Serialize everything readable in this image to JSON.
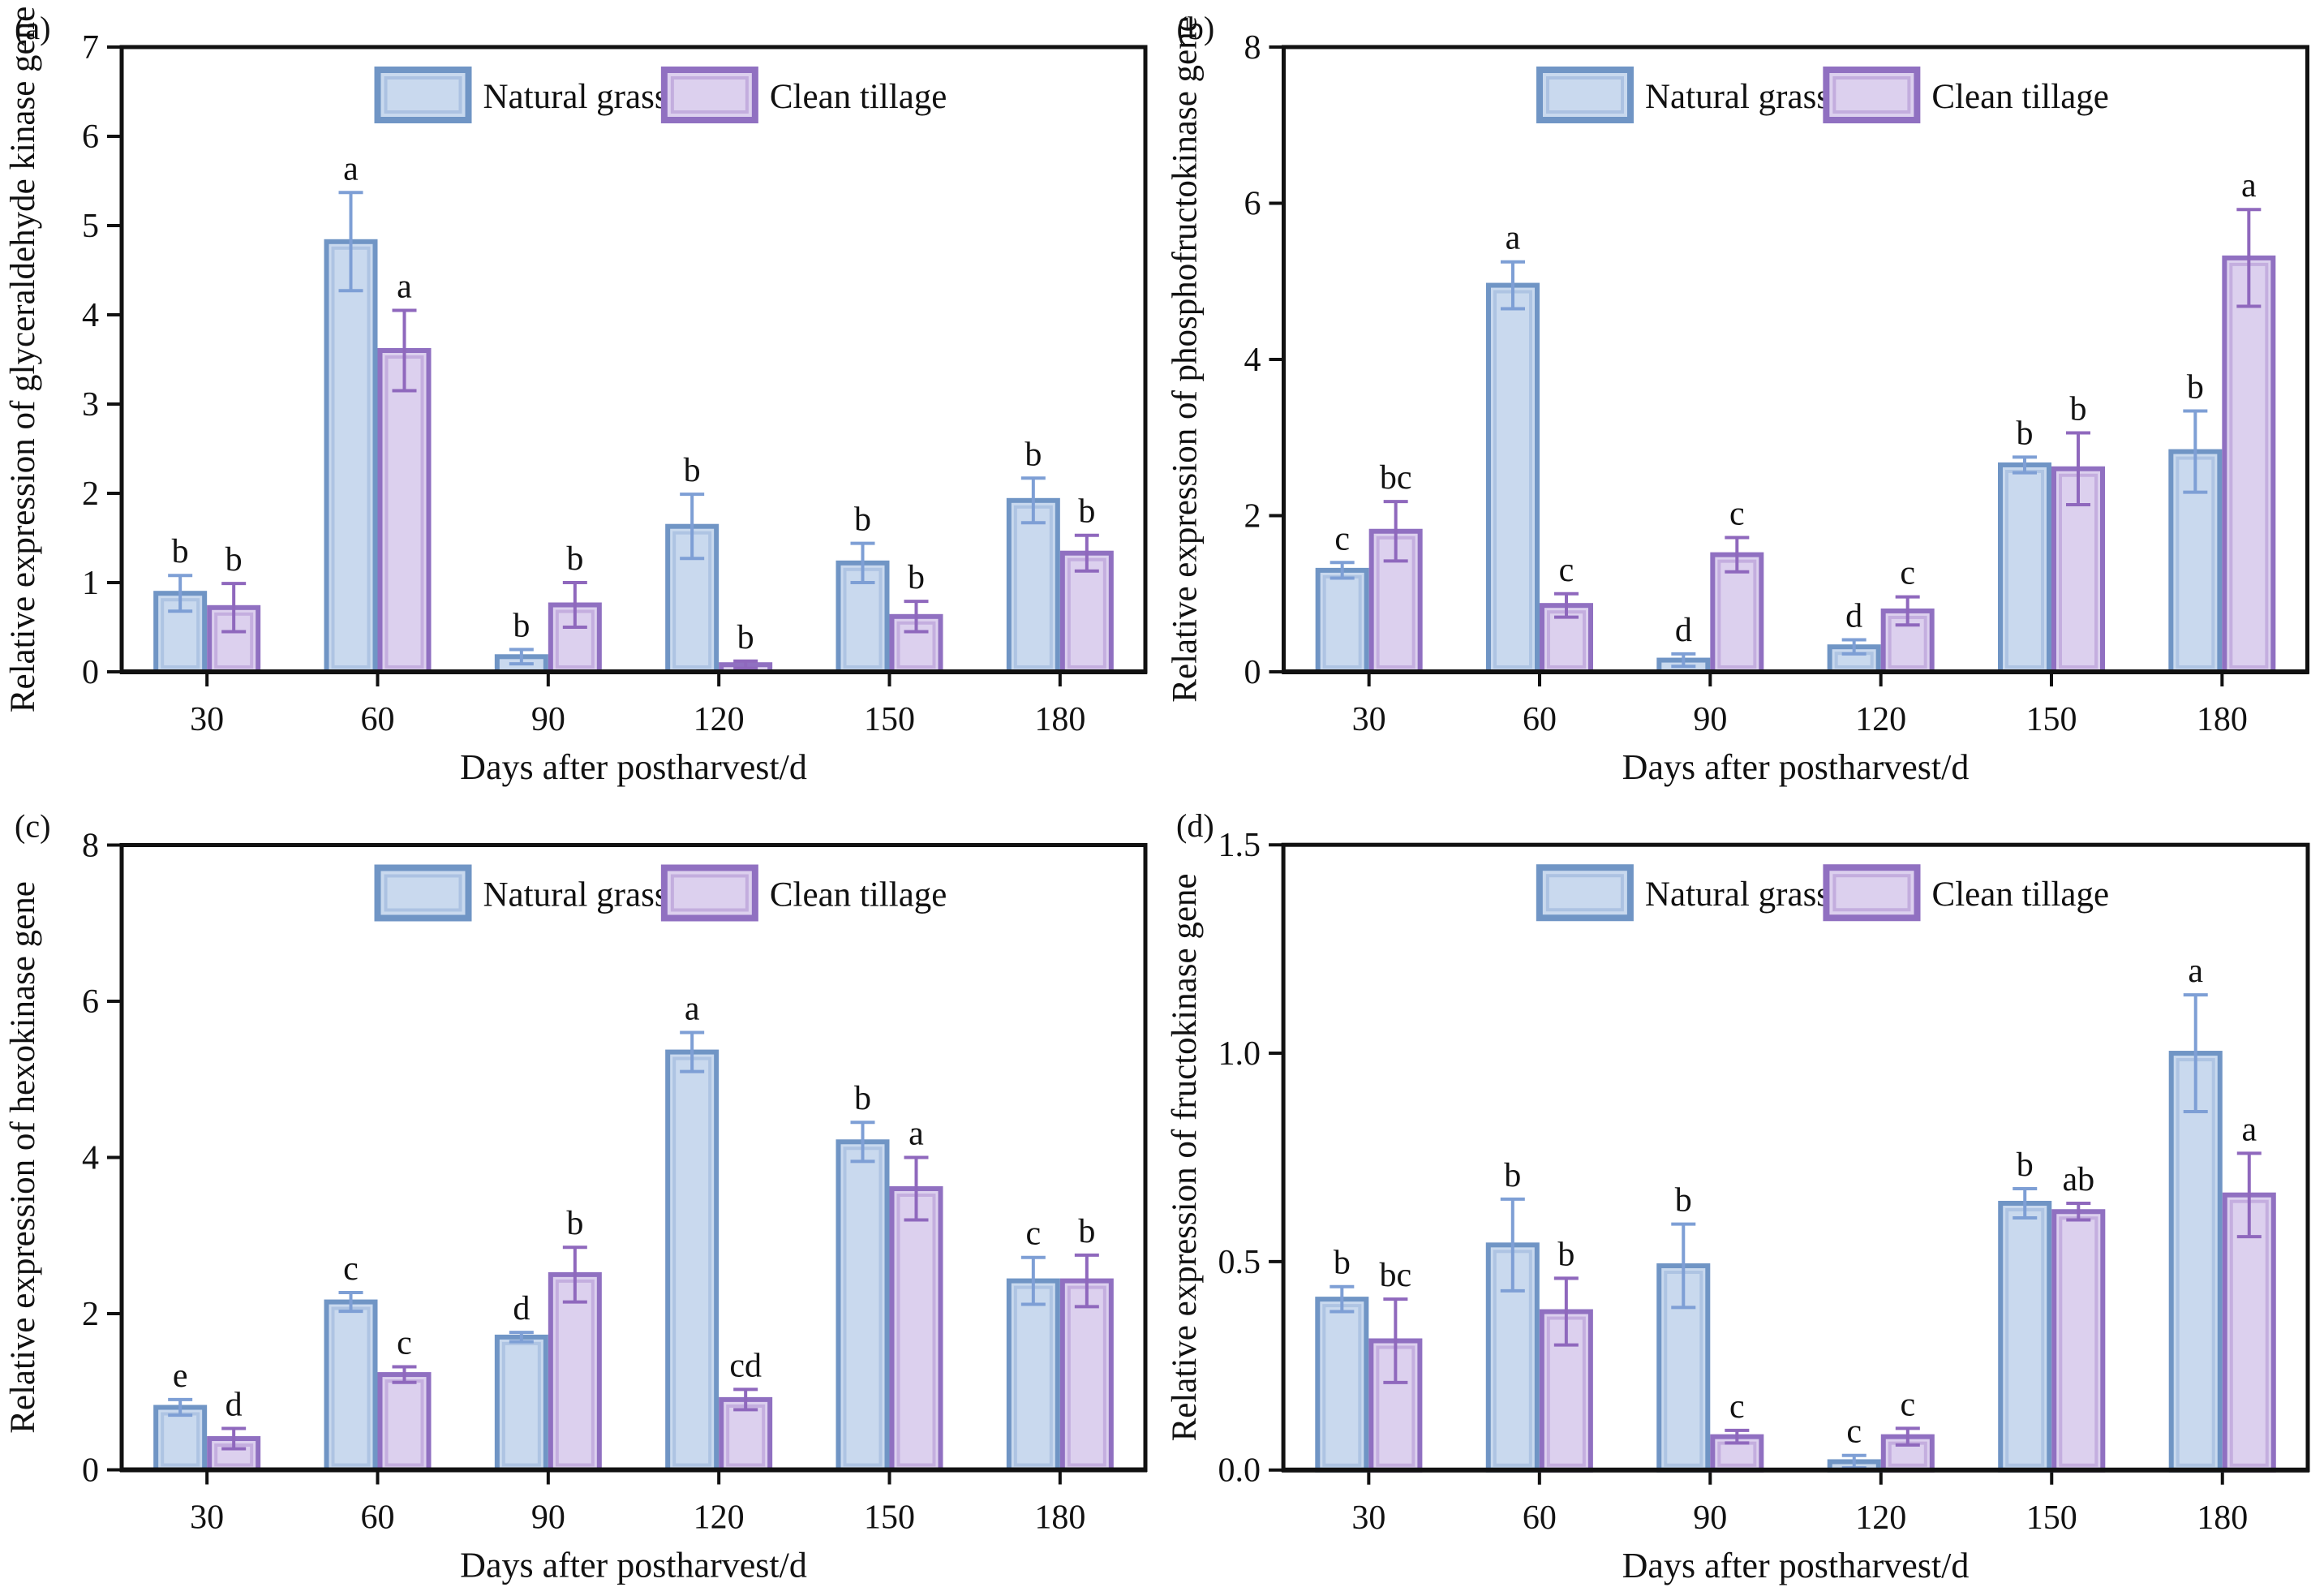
{
  "figure": {
    "background": "#ffffff",
    "ink_color": "#111111",
    "series_styles": [
      {
        "name": "Natural grass",
        "fill": "#c9d9ee",
        "stroke": "#7095c5",
        "inner": "#a9bfe0",
        "error": "#7e9fd5"
      },
      {
        "name": "Clean tillage",
        "fill": "#dcd0ee",
        "stroke": "#9070c1",
        "inner": "#c0a8dc",
        "error": "#8f68bd"
      }
    ]
  },
  "chart_data": [
    {
      "type": "bar",
      "panel_label": "(a)",
      "ylabel": "Relative expression of glyceraldehyde kinase gene",
      "xlabel": "Days after postharvest/d",
      "categories": [
        "30",
        "60",
        "90",
        "120",
        "150",
        "180"
      ],
      "ylim": [
        0,
        7
      ],
      "yticks": [
        "0",
        "1",
        "2",
        "3",
        "4",
        "5",
        "6",
        "7"
      ],
      "grid": false,
      "legend_position": "top-inside",
      "series": [
        {
          "name": "Natural grass",
          "values": [
            0.88,
            4.82,
            0.17,
            1.63,
            1.22,
            1.92
          ],
          "errors": [
            0.2,
            0.55,
            0.08,
            0.36,
            0.22,
            0.25
          ],
          "sig_letters": [
            "b",
            "a",
            "b",
            "b",
            "b",
            "b"
          ]
        },
        {
          "name": "Clean tillage",
          "values": [
            0.72,
            3.6,
            0.75,
            0.08,
            0.62,
            1.33
          ],
          "errors": [
            0.27,
            0.45,
            0.25,
            0.04,
            0.17,
            0.2
          ],
          "sig_letters": [
            "b",
            "a",
            "b",
            "b",
            "b",
            "b"
          ]
        }
      ]
    },
    {
      "type": "bar",
      "panel_label": "(b)",
      "ylabel": "Relative expression of phosphofructokinase gene",
      "xlabel": "Days after postharvest/d",
      "categories": [
        "30",
        "60",
        "90",
        "120",
        "150",
        "180"
      ],
      "ylim": [
        0,
        8
      ],
      "yticks": [
        "0",
        "2",
        "4",
        "6",
        "8"
      ],
      "grid": false,
      "legend_position": "top-inside",
      "series": [
        {
          "name": "Natural grass",
          "values": [
            1.3,
            4.95,
            0.15,
            0.32,
            2.65,
            2.82
          ],
          "errors": [
            0.1,
            0.3,
            0.08,
            0.09,
            0.1,
            0.52
          ],
          "sig_letters": [
            "c",
            "a",
            "d",
            "d",
            "b",
            "b"
          ]
        },
        {
          "name": "Clean tillage",
          "values": [
            1.8,
            0.85,
            1.5,
            0.78,
            2.6,
            5.3
          ],
          "errors": [
            0.38,
            0.15,
            0.22,
            0.18,
            0.46,
            0.62
          ],
          "sig_letters": [
            "bc",
            "c",
            "c",
            "c",
            "b",
            "a"
          ]
        }
      ]
    },
    {
      "type": "bar",
      "panel_label": "(c)",
      "ylabel": "Relative expression of hexokinase gene",
      "xlabel": "Days after postharvest/d",
      "categories": [
        "30",
        "60",
        "90",
        "120",
        "150",
        "180"
      ],
      "ylim": [
        0,
        8
      ],
      "yticks": [
        "0",
        "2",
        "4",
        "6",
        "8"
      ],
      "grid": false,
      "legend_position": "top-inside",
      "series": [
        {
          "name": "Natural grass",
          "values": [
            0.8,
            2.15,
            1.7,
            5.35,
            4.2,
            2.42
          ],
          "errors": [
            0.1,
            0.12,
            0.06,
            0.25,
            0.25,
            0.3
          ],
          "sig_letters": [
            "e",
            "c",
            "d",
            "a",
            "b",
            "c"
          ]
        },
        {
          "name": "Clean tillage",
          "values": [
            0.4,
            1.22,
            2.5,
            0.9,
            3.6,
            2.42
          ],
          "errors": [
            0.13,
            0.1,
            0.35,
            0.13,
            0.4,
            0.33
          ],
          "sig_letters": [
            "d",
            "c",
            "b",
            "cd",
            "a",
            "b"
          ]
        }
      ]
    },
    {
      "type": "bar",
      "panel_label": "(d)",
      "ylabel": "Relative expression of fructokinase gene",
      "xlabel": "Days after postharvest/d",
      "categories": [
        "30",
        "60",
        "90",
        "120",
        "150",
        "180"
      ],
      "ylim": [
        0,
        1.5
      ],
      "yticks": [
        "0.0",
        "0.5",
        "1.0",
        "1.5"
      ],
      "grid": false,
      "legend_position": "top-inside",
      "series": [
        {
          "name": "Natural grass",
          "values": [
            0.41,
            0.54,
            0.49,
            0.02,
            0.64,
            1.0
          ],
          "errors": [
            0.03,
            0.11,
            0.1,
            0.015,
            0.035,
            0.14
          ],
          "sig_letters": [
            "b",
            "b",
            "b",
            "c",
            "b",
            "a"
          ]
        },
        {
          "name": "Clean tillage",
          "values": [
            0.31,
            0.38,
            0.08,
            0.08,
            0.62,
            0.66
          ],
          "errors": [
            0.1,
            0.08,
            0.015,
            0.02,
            0.02,
            0.1
          ],
          "sig_letters": [
            "bc",
            "b",
            "c",
            "c",
            "ab",
            "a"
          ]
        }
      ]
    }
  ]
}
